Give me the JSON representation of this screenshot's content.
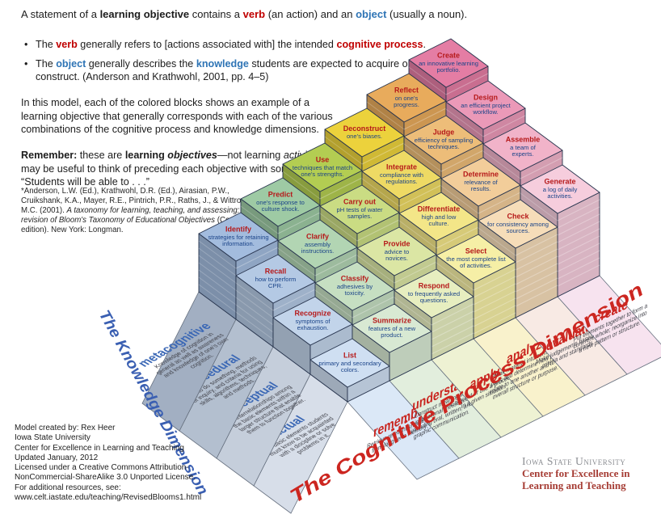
{
  "intro": {
    "title_segments": [
      {
        "t": "A statement of a "
      },
      {
        "t": "learning objective",
        "s": "b"
      },
      {
        "t": " contains a "
      },
      {
        "t": "verb",
        "s": "rb"
      },
      {
        "t": " (an action) and an "
      },
      {
        "t": "object",
        "s": "bb"
      },
      {
        "t": " (usually a noun)."
      }
    ],
    "bullets": [
      {
        "segments": [
          {
            "t": "The "
          },
          {
            "t": "verb",
            "s": "rb"
          },
          {
            "t": " generally refers to [actions associated with] the intended "
          },
          {
            "t": "cognitive process",
            "s": "rb"
          },
          {
            "t": "."
          }
        ]
      },
      {
        "segments": [
          {
            "t": "The "
          },
          {
            "t": "object",
            "s": "bb"
          },
          {
            "t": " generally describes the "
          },
          {
            "t": "knowledge",
            "s": "bb"
          },
          {
            "t": " students are expected to acquire or construct. (Anderson and Krathwohl, 2001, pp. 4–5)"
          }
        ]
      }
    ],
    "paragraph": "In this model, each of the colored blocks shows an example of a learning objective that generally corresponds with each of the various combinations of the cognitive process and knowledge dimensions.",
    "remember_segments": [
      {
        "t": "Remember:",
        "s": "b"
      },
      {
        "t": " these are "
      },
      {
        "t": "learning ",
        "s": "b"
      },
      {
        "t": "objectives",
        "s": "bi"
      },
      {
        "t": "—not learning "
      },
      {
        "t": "activities",
        "s": "i"
      },
      {
        "t": ". It may be useful to think of preceding each objective with something like: “Students will be able to . . .”"
      }
    ],
    "citation_segments": [
      {
        "t": "*Anderson, L.W. (Ed.), Krathwohl, D.R. (Ed.), Airasian, P.W., Cruikshank, K.A., Mayer, R.E., Pintrich, P.R., Raths, J., & Wittrock, M.C. (2001). "
      },
      {
        "t": "A taxonomy for learning, teaching, and assessing: A revision of Bloom's Taxonomy of Educational Objectives",
        "s": "i"
      },
      {
        "t": " (Complete edition). New York: Longman."
      }
    ]
  },
  "credits": {
    "lines": [
      "Model created by: Rex Heer",
      "Iowa State University",
      "Center for Excellence in Learning and Teaching",
      "Updated January, 2012",
      "Licensed under a Creative Commons Attribution-",
      "NonCommercial-ShareAlike 3.0 Unported License.",
      "For additional resources, see:",
      "www.celt.iastate.edu/teaching/RevisedBlooms1.html"
    ]
  },
  "logo": {
    "line1": "Iowa State University",
    "line2": "Center for Excellence in",
    "line3": "Learning and Teaching"
  },
  "axes": {
    "knowledge_title": "The Knowledge Dimension",
    "process_title": "The Cognitive Process Dimension"
  },
  "taxonomy": {
    "knowledge_rows": [
      {
        "id": "factual",
        "label": "factual",
        "band_color": "#d7dee9",
        "desc_lines": [
          "The basic elements students",
          "must know to be acquainted",
          "with a discipline or solve",
          "problems in it."
        ]
      },
      {
        "id": "conceptual",
        "label": "conceptual",
        "band_color": "#c5cedb",
        "desc_lines": [
          "The interrelationships among",
          "the basic elements within a",
          "larger structure that enable",
          "them to function together."
        ]
      },
      {
        "id": "procedural",
        "label": "procedural",
        "band_color": "#b3bfcf",
        "desc_lines": [
          "How to do something, methods",
          "of inquiry, and criteria for using",
          "skills, algorithms, techniques,",
          "and methods."
        ]
      },
      {
        "id": "metacognitive",
        "label": "metacognitive",
        "band_color": "#a2afc2",
        "desc_lines": [
          "Knowledge of cognition in",
          "general as well as awareness",
          "and knowledge of one's own",
          "cognition."
        ]
      }
    ],
    "process_columns": [
      {
        "id": "remember",
        "label": "remember",
        "band_color": "#dbe8f7",
        "top_colors": [
          "#cfdff2",
          "#c2d4ea",
          "#b4c9e4",
          "#a3bcde"
        ],
        "desc_lines": [
          "Retrieve relevant knowledge",
          "from long-term memory."
        ],
        "cells": [
          {
            "verb": "List",
            "object_lines": [
              "primary and secondary",
              "colors."
            ]
          },
          {
            "verb": "Recognize",
            "object_lines": [
              "symptoms of",
              "exhaustion."
            ]
          },
          {
            "verb": "Recall",
            "object_lines": [
              "how to perform",
              "CPR."
            ]
          },
          {
            "verb": "Identify",
            "object_lines": [
              "strategies for retaining",
              "information."
            ]
          }
        ]
      },
      {
        "id": "understand",
        "label": "understand",
        "band_color": "#e2eedd",
        "top_colors": [
          "#d8e9d3",
          "#c6dfc2",
          "#b2d5b3",
          "#9ecaa4"
        ],
        "desc_lines": [
          "Construct meaning from",
          "instructional messages,",
          "including oral, written, and",
          "graphic communication."
        ],
        "cells": [
          {
            "verb": "Summarize",
            "object_lines": [
              "features of a new",
              "product."
            ]
          },
          {
            "verb": "Classify",
            "object_lines": [
              "adhesives by",
              "toxicity."
            ]
          },
          {
            "verb": "Clarify",
            "object_lines": [
              "assembly",
              "instructions."
            ]
          },
          {
            "verb": "Predict",
            "object_lines": [
              "one's response to",
              "culture shock."
            ]
          }
        ]
      },
      {
        "id": "apply",
        "label": "apply",
        "band_color": "#eef2d3",
        "top_colors": [
          "#e7eec0",
          "#dbe6a4",
          "#cadc83",
          "#b3cd52"
        ],
        "desc_lines": [
          "Carry out or use a procedure",
          "in a given situation."
        ],
        "cells": [
          {
            "verb": "Respond",
            "object_lines": [
              "to frequently asked",
              "questions."
            ]
          },
          {
            "verb": "Provide",
            "object_lines": [
              "advice to",
              "novices."
            ]
          },
          {
            "verb": "Carry out",
            "object_lines": [
              "pH tests of water",
              "samples."
            ]
          },
          {
            "verb": "Use",
            "object_lines": [
              "techniques that match",
              "one's strengths."
            ]
          }
        ]
      },
      {
        "id": "analyze",
        "label": "analyze",
        "band_color": "#f9f2cc",
        "top_colors": [
          "#f6efa6",
          "#f3e688",
          "#eeda64",
          "#ecd23c"
        ],
        "desc_lines": [
          "Break material into constituent",
          "parts and determine how parts",
          "relate to one another and to an",
          "overall structure or purpose."
        ],
        "cells": [
          {
            "verb": "Select",
            "object_lines": [
              "the most complete list",
              "of activities."
            ]
          },
          {
            "verb": "Differentiate",
            "object_lines": [
              "high and low",
              "culture."
            ]
          },
          {
            "verb": "Integrate",
            "object_lines": [
              "compliance with",
              "regulations."
            ]
          },
          {
            "verb": "Deconstruct",
            "object_lines": [
              "one's biases."
            ]
          }
        ]
      },
      {
        "id": "evaluate",
        "label": "evaluate",
        "band_color": "#f8eae4",
        "top_colors": [
          "#f6ddb9",
          "#f2cd9a",
          "#edbd79",
          "#e8ab5c"
        ],
        "desc_lines": [
          "Make judgements based on",
          "criteria and standards."
        ],
        "cells": [
          {
            "verb": "Check",
            "object_lines": [
              "for consistency among",
              "sources."
            ]
          },
          {
            "verb": "Determine",
            "object_lines": [
              "relevance of",
              "results."
            ]
          },
          {
            "verb": "Judge",
            "object_lines": [
              "efficiency of sampling",
              "techniques."
            ]
          },
          {
            "verb": "Reflect",
            "object_lines": [
              "on one's",
              "progress."
            ]
          }
        ]
      },
      {
        "id": "create",
        "label": "create",
        "band_color": "#f7e3ef",
        "top_colors": [
          "#f6cddd",
          "#f1b3c9",
          "#eb99b8",
          "#e47da4"
        ],
        "desc_lines": [
          "Put elements together to form a",
          "coherent whole; reorganize into",
          "a new pattern or structure."
        ],
        "cells": [
          {
            "verb": "Generate",
            "object_lines": [
              "a log of daily",
              "activities."
            ]
          },
          {
            "verb": "Assemble",
            "object_lines": [
              "a team of",
              "experts."
            ]
          },
          {
            "verb": "Design",
            "object_lines": [
              "an efficient project",
              "workflow."
            ]
          },
          {
            "verb": "Create",
            "object_lines": [
              "an innovative learning",
              "portfolio."
            ]
          }
        ]
      }
    ]
  },
  "palette": {
    "verb_red": "#b6191a",
    "object_blue": "#1b4489",
    "edge": "#26334d",
    "band_edge": "#66707f",
    "process_label_red": "#c9251f",
    "knowledge_label_blue": "#3a67b5",
    "band_desc_gray": "#43444c",
    "knowledge_title_blue": "#3a5fb2",
    "process_title_red": "#cc2620"
  }
}
